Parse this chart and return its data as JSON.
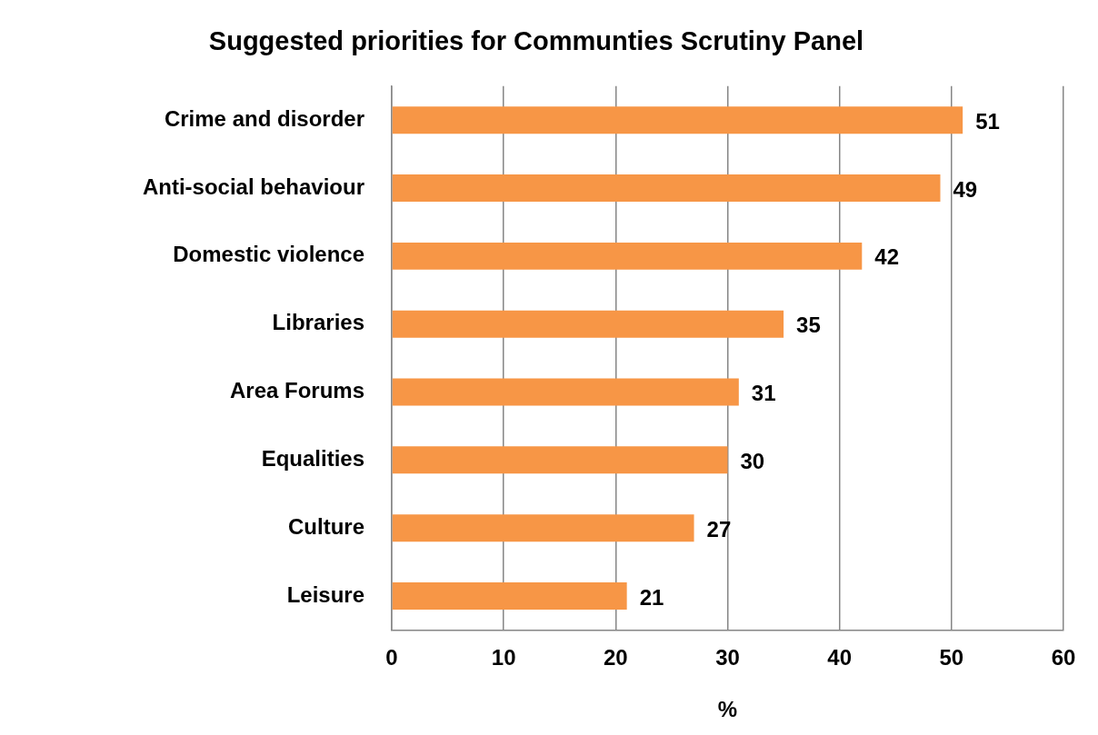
{
  "chart_data": {
    "type": "bar",
    "orientation": "horizontal",
    "title": "Suggested priorities for Communties Scrutiny Panel",
    "xlabel": "%",
    "categories": [
      "Crime and disorder",
      "Anti-social behaviour",
      "Domestic violence",
      "Libraries",
      "Area Forums",
      "Equalities",
      "Culture",
      "Leisure"
    ],
    "values": [
      51,
      49,
      42,
      35,
      31,
      30,
      27,
      21
    ],
    "color": "#f79646",
    "xlim": [
      0,
      60
    ],
    "xticks": [
      0,
      10,
      20,
      30,
      40,
      50,
      60
    ],
    "grid": "x",
    "data_labels": true,
    "legend": false
  }
}
